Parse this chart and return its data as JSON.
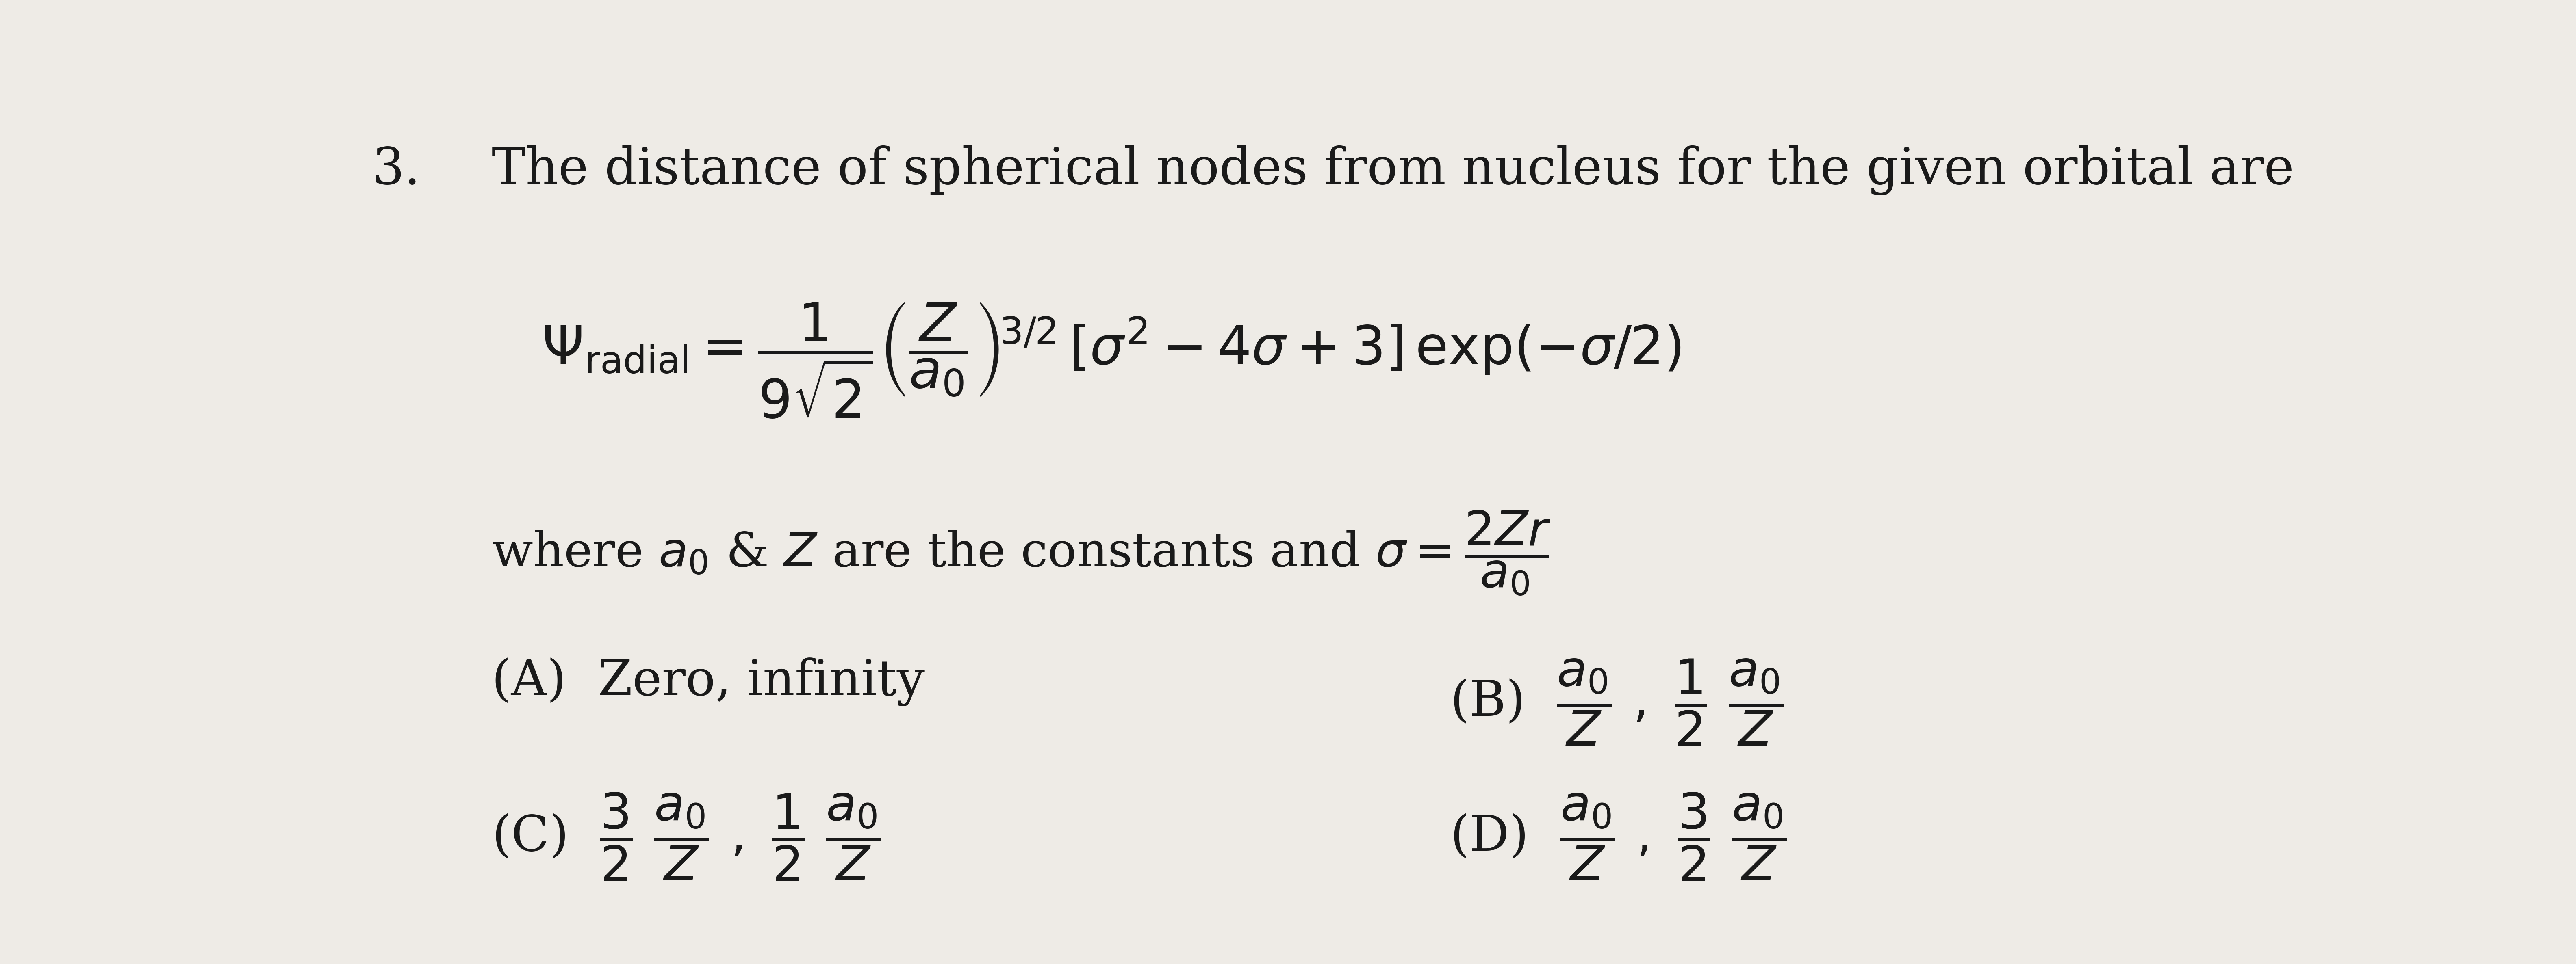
{
  "background_color": "#eeebe6",
  "text_color": "#1a1a1a",
  "question_number": "3.",
  "question_text": "The distance of spherical nodes from nucleus for the given orbital are",
  "figwidth": 63.39,
  "figheight": 23.74,
  "dpi": 100,
  "fontsize_q_num": 90,
  "fontsize_question": 90,
  "fontsize_formula": 95,
  "fontsize_where": 85,
  "fontsize_options": 88
}
